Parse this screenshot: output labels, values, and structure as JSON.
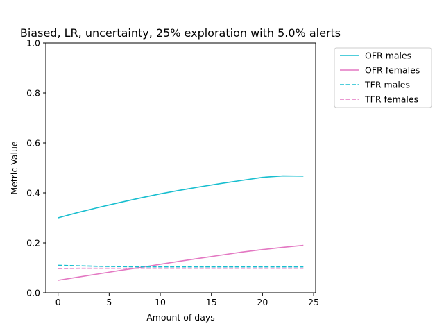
{
  "chart_data": {
    "type": "line",
    "title": "Biased, LR, uncertainty, 25% exploration with 5.0% alerts",
    "xlabel": "Amount of days",
    "ylabel": "Metric Value",
    "xlim": [
      -1.2,
      25.2
    ],
    "ylim": [
      0,
      1.0
    ],
    "xticks": [
      0,
      5,
      10,
      15,
      20,
      25
    ],
    "yticks": [
      0.0,
      0.2,
      0.4,
      0.6,
      0.8,
      1.0
    ],
    "xtick_labels": [
      "0",
      "5",
      "10",
      "15",
      "20",
      "25"
    ],
    "ytick_labels": [
      "0.0",
      "0.2",
      "0.4",
      "0.6",
      "0.8",
      "1.0"
    ],
    "legend_position": "outside-top-right",
    "x": [
      0,
      2,
      4,
      6,
      8,
      10,
      12,
      14,
      16,
      18,
      20,
      22,
      24
    ],
    "series": [
      {
        "name": "OFR males",
        "style": "solid",
        "color": "#17becf",
        "values": [
          0.3,
          0.322,
          0.342,
          0.361,
          0.379,
          0.396,
          0.411,
          0.425,
          0.438,
          0.45,
          0.462,
          0.468,
          0.467
        ]
      },
      {
        "name": "OFR females",
        "style": "solid",
        "color": "#e377c2",
        "values": [
          0.05,
          0.063,
          0.076,
          0.089,
          0.101,
          0.114,
          0.127,
          0.139,
          0.151,
          0.163,
          0.173,
          0.182,
          0.19
        ]
      },
      {
        "name": "TFR males",
        "style": "dashed",
        "color": "#17becf",
        "values": [
          0.11,
          0.108,
          0.106,
          0.105,
          0.104,
          0.104,
          0.104,
          0.104,
          0.104,
          0.104,
          0.104,
          0.104,
          0.104
        ]
      },
      {
        "name": "TFR females",
        "style": "dashed",
        "color": "#e377c2",
        "values": [
          0.097,
          0.098,
          0.098,
          0.098,
          0.098,
          0.098,
          0.098,
          0.098,
          0.098,
          0.098,
          0.098,
          0.098,
          0.098
        ]
      }
    ]
  }
}
